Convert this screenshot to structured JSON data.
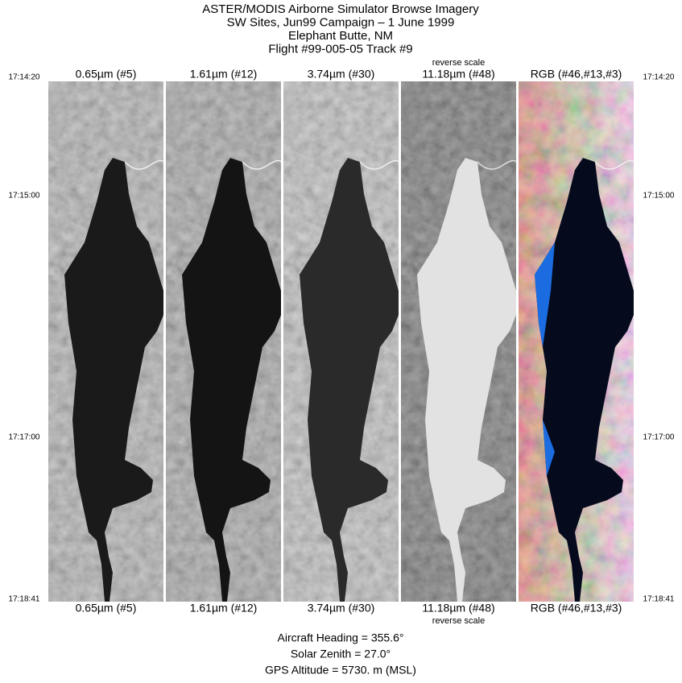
{
  "header": {
    "lines": [
      "ASTER/MODIS Airborne Simulator Browse Imagery",
      "SW Sites, Jun99 Campaign – 1 June 1999",
      "Elephant Butte, NM",
      "Flight #99-005-05 Track #9"
    ]
  },
  "panels": [
    {
      "label": "0.65µm (#5)"
    },
    {
      "label": "1.61µm (#12)"
    },
    {
      "label": "3.74µm (#30)"
    },
    {
      "label": "11.18µm (#48)",
      "note": "reverse scale"
    },
    {
      "label": "RGB (#46,#13,#3)"
    }
  ],
  "times": [
    "17:14:20",
    "17:15:00",
    "17:17:00",
    "17:18:41"
  ],
  "info": [
    "Aircraft Heading =  355.6°",
    "Solar Zenith =  27.0°",
    "GPS Altitude =   5730. m (MSL)"
  ]
}
